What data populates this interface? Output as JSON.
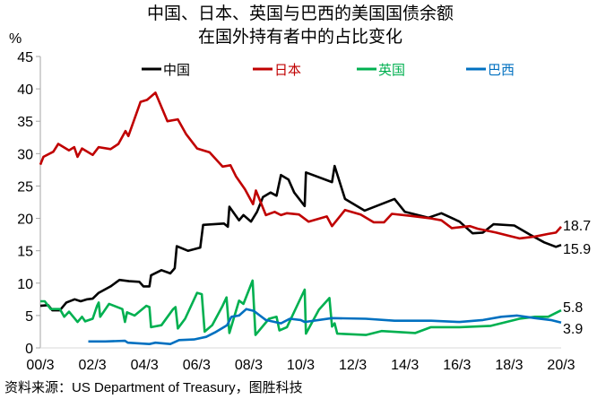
{
  "chart_data": {
    "type": "line",
    "title": [
      "中国、日本、英国与巴西的美国国债余额",
      "在国外持有者中的占比变化"
    ],
    "ylabel": "%",
    "xlabel": "",
    "x_unit": "years since 2000/3",
    "xlim": [
      0,
      20
    ],
    "ylim": [
      0,
      45
    ],
    "yticks": [
      "0",
      "5",
      "10",
      "15",
      "20",
      "25",
      "30",
      "35",
      "40",
      "45"
    ],
    "xticks": [
      "00/3",
      "02/3",
      "04/3",
      "06/3",
      "08/3",
      "10/3",
      "12/3",
      "14/3",
      "16/3",
      "18/3",
      "20/3"
    ],
    "grid": false,
    "legend_position": "top",
    "source": "资料来源：US Department of Treasury，图胜科技",
    "series": [
      {
        "name": "中国",
        "color": "#000000",
        "end_label": "15.9",
        "points": [
          [
            0,
            6.5
          ],
          [
            0.3,
            6.6
          ],
          [
            0.46,
            5.8
          ],
          [
            0.75,
            5.8
          ],
          [
            1.0,
            7.0
          ],
          [
            1.32,
            7.5
          ],
          [
            1.55,
            7.2
          ],
          [
            1.8,
            7.5
          ],
          [
            2.01,
            7.6
          ],
          [
            2.24,
            8.5
          ],
          [
            2.7,
            9.5
          ],
          [
            3.04,
            10.5
          ],
          [
            3.4,
            10.3
          ],
          [
            3.8,
            10.2
          ],
          [
            3.96,
            9.5
          ],
          [
            4.19,
            9.5
          ],
          [
            4.25,
            11.2
          ],
          [
            4.65,
            12.0
          ],
          [
            4.99,
            11.5
          ],
          [
            5.16,
            12.3
          ],
          [
            5.24,
            15.7
          ],
          [
            5.67,
            15.0
          ],
          [
            6.14,
            15.5
          ],
          [
            6.25,
            19.0
          ],
          [
            7.05,
            19.2
          ],
          [
            7.2,
            18.7
          ],
          [
            7.26,
            21.8
          ],
          [
            7.63,
            19.7
          ],
          [
            7.8,
            20.5
          ],
          [
            8.09,
            19.5
          ],
          [
            8.32,
            21.0
          ],
          [
            8.55,
            23.3
          ],
          [
            8.84,
            24.0
          ],
          [
            9.07,
            23.5
          ],
          [
            9.24,
            26.7
          ],
          [
            9.53,
            26.0
          ],
          [
            9.75,
            24.0
          ],
          [
            10.15,
            21.9
          ],
          [
            10.2,
            27.1
          ],
          [
            11.2,
            25.6
          ],
          [
            11.3,
            28.1
          ],
          [
            11.7,
            23.0
          ],
          [
            12.45,
            21.2
          ],
          [
            13.6,
            23.0
          ],
          [
            14.0,
            21.0
          ],
          [
            14.9,
            20.1
          ],
          [
            15.4,
            20.8
          ],
          [
            16.1,
            19.5
          ],
          [
            16.6,
            17.7
          ],
          [
            17.0,
            17.8
          ],
          [
            17.4,
            19.1
          ],
          [
            18.2,
            18.9
          ],
          [
            18.8,
            17.5
          ],
          [
            19.35,
            16.3
          ],
          [
            19.8,
            15.6
          ],
          [
            20,
            15.9
          ]
        ]
      },
      {
        "name": "日本",
        "color": "#c00000",
        "end_label": "18.7",
        "points": [
          [
            0,
            28.3
          ],
          [
            0.12,
            29.5
          ],
          [
            0.5,
            30.3
          ],
          [
            0.69,
            31.5
          ],
          [
            1.1,
            30.5
          ],
          [
            1.3,
            31.0
          ],
          [
            1.43,
            29.5
          ],
          [
            1.6,
            30.8
          ],
          [
            2.01,
            29.8
          ],
          [
            2.24,
            31.0
          ],
          [
            2.7,
            30.7
          ],
          [
            3.0,
            31.5
          ],
          [
            3.27,
            33.5
          ],
          [
            3.38,
            32.7
          ],
          [
            3.85,
            38.0
          ],
          [
            4.1,
            38.3
          ],
          [
            4.42,
            39.4
          ],
          [
            4.88,
            35.0
          ],
          [
            5.28,
            35.3
          ],
          [
            5.6,
            33.0
          ],
          [
            6.02,
            30.8
          ],
          [
            6.5,
            30.2
          ],
          [
            7.0,
            28.0
          ],
          [
            7.3,
            28.2
          ],
          [
            7.51,
            26.5
          ],
          [
            7.86,
            24.5
          ],
          [
            8.17,
            22.2
          ],
          [
            8.28,
            24.3
          ],
          [
            8.66,
            20.5
          ],
          [
            9.0,
            21.0
          ],
          [
            9.24,
            20.5
          ],
          [
            9.47,
            20.8
          ],
          [
            9.93,
            20.6
          ],
          [
            10.3,
            19.5
          ],
          [
            11.0,
            20.3
          ],
          [
            11.2,
            18.8
          ],
          [
            11.7,
            21.3
          ],
          [
            12.3,
            20.6
          ],
          [
            12.8,
            19.4
          ],
          [
            13.2,
            19.4
          ],
          [
            13.5,
            20.7
          ],
          [
            14.2,
            20.4
          ],
          [
            15.0,
            20.0
          ],
          [
            15.4,
            19.7
          ],
          [
            15.8,
            18.5
          ],
          [
            16.5,
            18.8
          ],
          [
            16.8,
            18.4
          ],
          [
            17.5,
            17.8
          ],
          [
            18.1,
            17.2
          ],
          [
            18.4,
            16.9
          ],
          [
            19.0,
            17.2
          ],
          [
            19.5,
            17.6
          ],
          [
            19.8,
            17.8
          ],
          [
            20,
            18.7
          ]
        ]
      },
      {
        "name": "英国",
        "color": "#00b050",
        "end_label": "5.8",
        "points": [
          [
            0,
            7.2
          ],
          [
            0.17,
            7.2
          ],
          [
            0.4,
            6.0
          ],
          [
            0.75,
            6.0
          ],
          [
            0.92,
            4.8
          ],
          [
            1.1,
            5.6
          ],
          [
            1.43,
            4.0
          ],
          [
            1.6,
            4.8
          ],
          [
            1.72,
            4.1
          ],
          [
            2.01,
            4.5
          ],
          [
            2.18,
            6.5
          ],
          [
            2.24,
            7.0
          ],
          [
            2.3,
            4.8
          ],
          [
            2.64,
            6.8
          ],
          [
            3.15,
            6.0
          ],
          [
            3.25,
            4.0
          ],
          [
            3.33,
            5.5
          ],
          [
            3.62,
            5.0
          ],
          [
            4.07,
            6.5
          ],
          [
            4.19,
            6.3
          ],
          [
            4.25,
            3.2
          ],
          [
            4.65,
            3.5
          ],
          [
            5.1,
            6.0
          ],
          [
            5.19,
            6.3
          ],
          [
            5.28,
            3.0
          ],
          [
            5.56,
            4.5
          ],
          [
            6.02,
            8.5
          ],
          [
            6.2,
            8.3
          ],
          [
            6.31,
            2.5
          ],
          [
            6.6,
            3.5
          ],
          [
            7.0,
            6.5
          ],
          [
            7.15,
            7.8
          ],
          [
            7.26,
            2.3
          ],
          [
            7.63,
            7.3
          ],
          [
            7.8,
            6.8
          ],
          [
            8.15,
            10.4
          ],
          [
            8.26,
            2.0
          ],
          [
            8.78,
            4.5
          ],
          [
            9.07,
            4.8
          ],
          [
            9.18,
            2.7
          ],
          [
            9.47,
            3.2
          ],
          [
            10.15,
            9.0
          ],
          [
            10.2,
            2.2
          ],
          [
            10.7,
            5.9
          ],
          [
            11.1,
            7.7
          ],
          [
            11.2,
            3.3
          ],
          [
            11.3,
            3.8
          ],
          [
            11.4,
            2.2
          ],
          [
            12.5,
            2.0
          ],
          [
            13.1,
            2.6
          ],
          [
            14.4,
            2.3
          ],
          [
            15.0,
            3.2
          ],
          [
            16.1,
            3.2
          ],
          [
            17.3,
            3.4
          ],
          [
            18.4,
            4.5
          ],
          [
            19.0,
            4.8
          ],
          [
            19.5,
            4.8
          ],
          [
            20,
            5.8
          ]
        ]
      },
      {
        "name": "巴西",
        "color": "#0070c0",
        "end_label": "3.9",
        "points": [
          [
            1.84,
            1.0
          ],
          [
            2.5,
            1.0
          ],
          [
            3.25,
            1.1
          ],
          [
            3.36,
            0.8
          ],
          [
            4.19,
            0.6
          ],
          [
            4.42,
            0.8
          ],
          [
            4.99,
            0.6
          ],
          [
            5.33,
            1.2
          ],
          [
            5.9,
            1.3
          ],
          [
            6.37,
            1.7
          ],
          [
            6.71,
            2.4
          ],
          [
            7.17,
            3.5
          ],
          [
            7.34,
            4.8
          ],
          [
            7.63,
            5.0
          ],
          [
            7.91,
            6.0
          ],
          [
            8.2,
            5.7
          ],
          [
            8.43,
            5.0
          ],
          [
            8.66,
            4.3
          ],
          [
            9.24,
            3.8
          ],
          [
            9.58,
            4.5
          ],
          [
            10.0,
            4.3
          ],
          [
            10.15,
            4.0
          ],
          [
            11.2,
            4.6
          ],
          [
            12.5,
            4.5
          ],
          [
            13.6,
            4.2
          ],
          [
            15.0,
            4.2
          ],
          [
            16.1,
            4.0
          ],
          [
            17.0,
            4.3
          ],
          [
            17.7,
            4.8
          ],
          [
            18.3,
            5.0
          ],
          [
            19.0,
            4.6
          ],
          [
            19.6,
            4.3
          ],
          [
            20,
            3.9
          ]
        ]
      }
    ]
  }
}
